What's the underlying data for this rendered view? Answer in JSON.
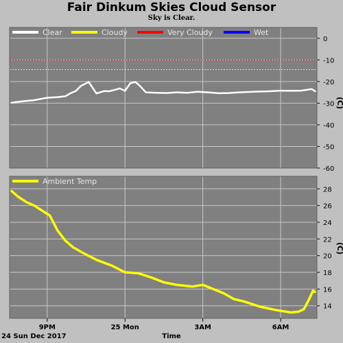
{
  "title": "Fair Dinkum Skies Cloud Sensor",
  "subtitle": "Sky is Clear.",
  "date_label": "24 Sun Dec 2017",
  "colors": {
    "background": "#c0c0c0",
    "plot_bg": "#808080",
    "grid": "#c8c8c8",
    "clear": "#ffffff",
    "cloudy": "#ffff00",
    "very_cloudy": "#ff0000",
    "wet": "#0000ff",
    "ambient": "#ffff00"
  },
  "chart_data": [
    {
      "type": "line",
      "ylabel": "(C)",
      "ylim": [
        -60,
        5
      ],
      "yticks": [
        "0",
        "-10",
        "-20",
        "-30",
        "-40",
        "-50",
        "-60"
      ],
      "ytick_values": [
        0,
        -10,
        -20,
        -30,
        -40,
        -50,
        -60
      ],
      "grid": true,
      "legend_placement": "top-left",
      "legend": [
        {
          "name": "Clear",
          "color": "#ffffff"
        },
        {
          "name": "Cloudy",
          "color": "#ffff00"
        },
        {
          "name": "Very Cloudy",
          "color": "#ff0000"
        },
        {
          "name": "Wet",
          "color": "#0000ff"
        }
      ],
      "thresholds": [
        {
          "value": -10,
          "color": "#ff0000"
        },
        {
          "value": -14.5,
          "color": "#ffff00"
        }
      ],
      "series": [
        {
          "name": "Clear",
          "color": "#ffffff",
          "x": [
            19.6,
            20.0,
            20.5,
            21.0,
            21.4,
            21.7,
            21.9,
            22.1,
            22.3,
            22.6,
            22.9,
            23.2,
            23.4,
            23.8,
            24.0,
            24.2,
            24.4,
            24.6,
            24.8,
            25.2,
            25.6,
            26.0,
            26.4,
            26.8,
            27.2,
            27.6,
            28.0,
            28.4,
            28.8,
            29.2,
            29.6,
            30.0,
            30.4,
            30.8,
            31.2,
            31.35
          ],
          "values": [
            -29.8,
            -29.2,
            -28.6,
            -27.5,
            -27.2,
            -26.8,
            -25.4,
            -24.4,
            -22.0,
            -20.2,
            -25.5,
            -24.4,
            -24.5,
            -23.2,
            -24.3,
            -20.8,
            -20.2,
            -22.3,
            -25.0,
            -25.2,
            -25.3,
            -25.0,
            -25.2,
            -24.7,
            -25.0,
            -25.4,
            -25.3,
            -25.0,
            -24.8,
            -24.6,
            -24.5,
            -24.2,
            -24.3,
            -24.2,
            -23.5,
            -24.6
          ]
        }
      ]
    },
    {
      "type": "line",
      "ylabel": "(C)",
      "ylim": [
        12.5,
        29.5
      ],
      "yticks": [
        "28",
        "26",
        "24",
        "22",
        "20",
        "18",
        "16",
        "14"
      ],
      "ytick_values": [
        28,
        26,
        24,
        22,
        20,
        18,
        16,
        14
      ],
      "grid": true,
      "legend_placement": "top-left",
      "legend": [
        {
          "name": "Ambient Temp",
          "color": "#ffff00"
        }
      ],
      "series": [
        {
          "name": "Ambient Temp",
          "color": "#ffff00",
          "x": [
            19.6,
            19.9,
            20.2,
            20.5,
            20.9,
            21.1,
            21.4,
            21.7,
            22.0,
            22.4,
            22.9,
            23.5,
            24.0,
            24.5,
            25.0,
            25.5,
            26.0,
            26.6,
            27.0,
            27.4,
            27.8,
            28.2,
            28.6,
            29.2,
            29.8,
            30.4,
            30.7,
            30.9,
            31.1,
            31.25,
            31.35
          ],
          "values": [
            27.8,
            27.0,
            26.4,
            26.0,
            25.2,
            24.8,
            23.0,
            21.8,
            21.0,
            20.3,
            19.5,
            18.8,
            18.0,
            17.9,
            17.4,
            16.8,
            16.5,
            16.3,
            16.5,
            16.0,
            15.5,
            14.8,
            14.5,
            13.9,
            13.5,
            13.2,
            13.3,
            13.6,
            14.8,
            15.8,
            15.6
          ]
        }
      ]
    }
  ],
  "x_axis": {
    "xlabel": "Time",
    "xlim": [
      19.55,
      31.4
    ],
    "ticks": [
      {
        "value": 21.0,
        "label": "9PM"
      },
      {
        "value": 24.0,
        "label": "25 Mon"
      },
      {
        "value": 27.0,
        "label": "3AM"
      },
      {
        "value": 30.0,
        "label": "6AM"
      }
    ]
  }
}
